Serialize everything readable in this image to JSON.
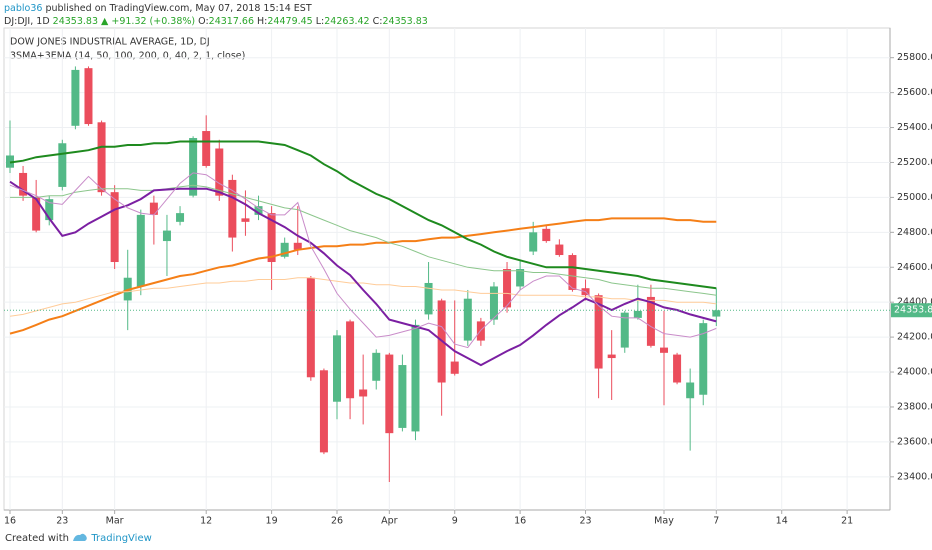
{
  "chart_data": {
    "type": "candlestick",
    "header": {
      "author": "pablo36",
      "published": "published on TradingView.com, May 07, 2018 15:14 EST",
      "symbol": "DJ:DJI, 1D",
      "last": "24353.83",
      "change": "▲ +91.32 (+0.38%)",
      "ohlc": [
        {
          "key": "O:",
          "value": "24317.66"
        },
        {
          "key": "H:",
          "value": "24479.45"
        },
        {
          "key": "L:",
          "value": "24263.42"
        },
        {
          "key": "C:",
          "value": "24353.83"
        }
      ]
    },
    "title": "DOW JONES INDUSTRIAL AVERAGE, 1D, DJ",
    "subtitle": "3SMA+3EMA (14, 50, 100, 200, 0, 40, 2, 1, close)",
    "footer": {
      "created": "Created with",
      "brand": "TradingView"
    },
    "categories": [
      "2018-02-16",
      "2018-02-20",
      "2018-02-21",
      "2018-02-22",
      "2018-02-23",
      "2018-02-26",
      "2018-02-27",
      "2018-02-28",
      "2018-03-01",
      "2018-03-02",
      "2018-03-05",
      "2018-03-06",
      "2018-03-07",
      "2018-03-08",
      "2018-03-09",
      "2018-03-12",
      "2018-03-13",
      "2018-03-14",
      "2018-03-15",
      "2018-03-16",
      "2018-03-19",
      "2018-03-20",
      "2018-03-21",
      "2018-03-22",
      "2018-03-23",
      "2018-03-26",
      "2018-03-27",
      "2018-03-28",
      "2018-03-29",
      "2018-04-02",
      "2018-04-03",
      "2018-04-04",
      "2018-04-05",
      "2018-04-06",
      "2018-04-09",
      "2018-04-10",
      "2018-04-11",
      "2018-04-12",
      "2018-04-13",
      "2018-04-16",
      "2018-04-17",
      "2018-04-18",
      "2018-04-19",
      "2018-04-20",
      "2018-04-23",
      "2018-04-24",
      "2018-04-25",
      "2018-04-26",
      "2018-04-27",
      "2018-04-30",
      "2018-05-01",
      "2018-05-02",
      "2018-05-03",
      "2018-05-04",
      "2018-05-07"
    ],
    "open": [
      25170,
      25140,
      25000,
      24870,
      25060,
      25410,
      25740,
      25430,
      25030,
      24410,
      24490,
      24970,
      24750,
      24860,
      25010,
      25380,
      25280,
      25100,
      24880,
      24900,
      24910,
      24660,
      24740,
      24540,
      24010,
      23830,
      24290,
      23900,
      23950,
      24100,
      23680,
      23660,
      24330,
      24410,
      24060,
      24180,
      24290,
      24300,
      24590,
      24490,
      24690,
      24820,
      24730,
      24670,
      24480,
      24440,
      24100,
      24140,
      24310,
      24430,
      24140,
      24100,
      23850,
      23870,
      24317.66
    ],
    "high": [
      25440,
      25180,
      25100,
      25010,
      25330,
      25750,
      25750,
      25440,
      25070,
      24700,
      24930,
      25010,
      24900,
      24950,
      25350,
      25470,
      25330,
      25130,
      25040,
      25010,
      24950,
      24770,
      24950,
      24550,
      24020,
      24240,
      24300,
      24100,
      24130,
      24110,
      24100,
      24300,
      24630,
      24420,
      24410,
      24470,
      24310,
      24515,
      24630,
      24640,
      24860,
      24840,
      24760,
      24680,
      24530,
      24450,
      24240,
      24350,
      24500,
      24500,
      24350,
      24110,
      24020,
      24300,
      24479.45
    ],
    "low": [
      25140,
      24980,
      24800,
      24840,
      25040,
      25390,
      25410,
      25010,
      24590,
      24240,
      24440,
      24730,
      24550,
      24840,
      25000,
      25170,
      24980,
      24690,
      24780,
      24870,
      24470,
      24650,
      24670,
      23950,
      23530,
      23730,
      23730,
      23700,
      23900,
      23370,
      23660,
      23610,
      24300,
      23750,
      23980,
      24150,
      24150,
      24270,
      24340,
      24470,
      24670,
      24740,
      24660,
      24460,
      24410,
      23850,
      23840,
      24110,
      24300,
      24140,
      23810,
      23930,
      23550,
      23810,
      24263.42
    ],
    "close": [
      25240,
      25010,
      24810,
      24990,
      25310,
      25730,
      25420,
      25030,
      24630,
      24540,
      24900,
      24900,
      24810,
      24910,
      25340,
      25180,
      25010,
      24770,
      24860,
      24950,
      24630,
      24740,
      24700,
      23970,
      23540,
      24210,
      23850,
      23860,
      24110,
      23650,
      24040,
      24270,
      24510,
      23940,
      23990,
      24420,
      24180,
      24490,
      24370,
      24590,
      24800,
      24750,
      24670,
      24470,
      24440,
      24020,
      24080,
      24340,
      24350,
      24150,
      24110,
      23940,
      23940,
      24280,
      24353.83
    ],
    "up_color": "#53b987",
    "down_color": "#eb4d5c",
    "series": [
      {
        "color": "#f57f17",
        "values": [
          24220,
          24240,
          24270,
          24300,
          24320,
          24350,
          24380,
          24410,
          24440,
          24470,
          24490,
          24510,
          24530,
          24550,
          24560,
          24580,
          24600,
          24610,
          24630,
          24650,
          24660,
          24680,
          24700,
          24710,
          24720,
          24720,
          24730,
          24730,
          24740,
          24740,
          24750,
          24750,
          24760,
          24770,
          24770,
          24780,
          24790,
          24800,
          24810,
          24820,
          24830,
          24840,
          24850,
          24860,
          24870,
          24870,
          24880,
          24880,
          24880,
          24880,
          24880,
          24870,
          24870,
          24860,
          24860
        ]
      },
      {
        "color": "#ffcc99",
        "values": [
          24320,
          24330,
          24350,
          24370,
          24390,
          24400,
          24420,
          24440,
          24460,
          24460,
          24470,
          24480,
          24480,
          24490,
          24500,
          24510,
          24510,
          24520,
          24520,
          24530,
          24530,
          24530,
          24540,
          24540,
          24530,
          24520,
          24510,
          24510,
          24500,
          24500,
          24490,
          24490,
          24480,
          24470,
          24470,
          24460,
          24450,
          24450,
          24450,
          24440,
          24440,
          24440,
          24440,
          24440,
          24430,
          24430,
          24420,
          24420,
          24410,
          24410,
          24410,
          24400,
          24400,
          24400,
          24390
        ]
      },
      {
        "color": "#1e8a1e",
        "values": [
          25200,
          25210,
          25230,
          25240,
          25250,
          25260,
          25270,
          25290,
          25290,
          25300,
          25300,
          25310,
          25310,
          25320,
          25320,
          25320,
          25320,
          25320,
          25320,
          25320,
          25310,
          25300,
          25270,
          25240,
          25190,
          25150,
          25100,
          25060,
          25020,
          24990,
          24950,
          24910,
          24870,
          24840,
          24800,
          24760,
          24730,
          24690,
          24660,
          24640,
          24620,
          24600,
          24600,
          24600,
          24590,
          24580,
          24570,
          24560,
          24550,
          24530,
          24520,
          24510,
          24500,
          24490,
          24480
        ]
      },
      {
        "color": "#8cc68c",
        "values": [
          25000,
          25000,
          25000,
          25010,
          25010,
          25030,
          25040,
          25050,
          25050,
          25050,
          25040,
          25040,
          25050,
          25060,
          25070,
          25060,
          25040,
          25020,
          25000,
          24980,
          24960,
          24940,
          24930,
          24900,
          24870,
          24840,
          24810,
          24790,
          24770,
          24740,
          24720,
          24690,
          24660,
          24640,
          24620,
          24600,
          24590,
          24580,
          24580,
          24580,
          24570,
          24570,
          24560,
          24550,
          24540,
          24530,
          24510,
          24500,
          24490,
          24480,
          24480,
          24470,
          24460,
          24450,
          24440
        ]
      },
      {
        "color": "#7b1fa2",
        "values": [
          25090,
          25040,
          24990,
          24880,
          24780,
          24800,
          24850,
          24890,
          24930,
          24955,
          24990,
          25040,
          25045,
          25050,
          25050,
          25050,
          25030,
          25000,
          24960,
          24910,
          24870,
          24830,
          24780,
          24740,
          24680,
          24610,
          24555,
          24470,
          24390,
          24300,
          24280,
          24260,
          24240,
          24180,
          24120,
          24080,
          24040,
          24080,
          24120,
          24155,
          24210,
          24270,
          24325,
          24370,
          24420,
          24390,
          24355,
          24390,
          24420,
          24400,
          24370,
          24355,
          24330,
          24310,
          24290
        ]
      },
      {
        "color": "#c98cc9",
        "values": [
          25070,
          25040,
          25010,
          24970,
          24960,
          25040,
          25120,
          25050,
          24990,
          24940,
          24910,
          24900,
          24990,
          25080,
          25140,
          25130,
          25080,
          25040,
          24990,
          24940,
          24900,
          24900,
          24970,
          24720,
          24590,
          24450,
          24360,
          24280,
          24200,
          24210,
          24230,
          24250,
          24280,
          24260,
          24160,
          24140,
          24240,
          24310,
          24380,
          24470,
          24520,
          24550,
          24550,
          24480,
          24460,
          24380,
          24320,
          24310,
          24310,
          24260,
          24220,
          24210,
          24200,
          24220,
          24250
        ]
      }
    ],
    "ylim": [
      23210,
      25970
    ],
    "yticks": [
      {
        "value": 23400,
        "label": "23400.00"
      },
      {
        "value": 23600,
        "label": "23600.00"
      },
      {
        "value": 23800,
        "label": "23800.00"
      },
      {
        "value": 24000,
        "label": "24000.00"
      },
      {
        "value": 24200,
        "label": "24200.00"
      },
      {
        "value": 24400,
        "label": "24400.00"
      },
      {
        "value": 24600,
        "label": "24600.00"
      },
      {
        "value": 24800,
        "label": "24800.00"
      },
      {
        "value": 25000,
        "label": "25000.00"
      },
      {
        "value": 25200,
        "label": "25200.00"
      },
      {
        "value": 25400,
        "label": "25400.00"
      },
      {
        "value": 25600,
        "label": "25600.00"
      },
      {
        "value": 25800,
        "label": "25800.00"
      }
    ],
    "xticks": [
      {
        "value": "2018-02-16",
        "label": "16"
      },
      {
        "value": "2018-02-23",
        "label": "23"
      },
      {
        "value": "2018-03-01",
        "label": "Mar"
      },
      {
        "value": "2018-03-12",
        "label": "12"
      },
      {
        "value": "2018-03-19",
        "label": "19"
      },
      {
        "value": "2018-03-26",
        "label": "26"
      },
      {
        "value": "2018-04-02",
        "label": "Apr"
      },
      {
        "value": "2018-04-09",
        "label": "9"
      },
      {
        "value": "2018-04-16",
        "label": "16"
      },
      {
        "value": "2018-04-23",
        "label": "23"
      },
      {
        "value": "2018-05-01",
        "label": "May"
      },
      {
        "value": "2018-05-07",
        "label": "7"
      },
      {
        "value": "2018-05-14",
        "label": "14"
      },
      {
        "value": "2018-05-21",
        "label": "21"
      }
    ],
    "grid": true
  }
}
